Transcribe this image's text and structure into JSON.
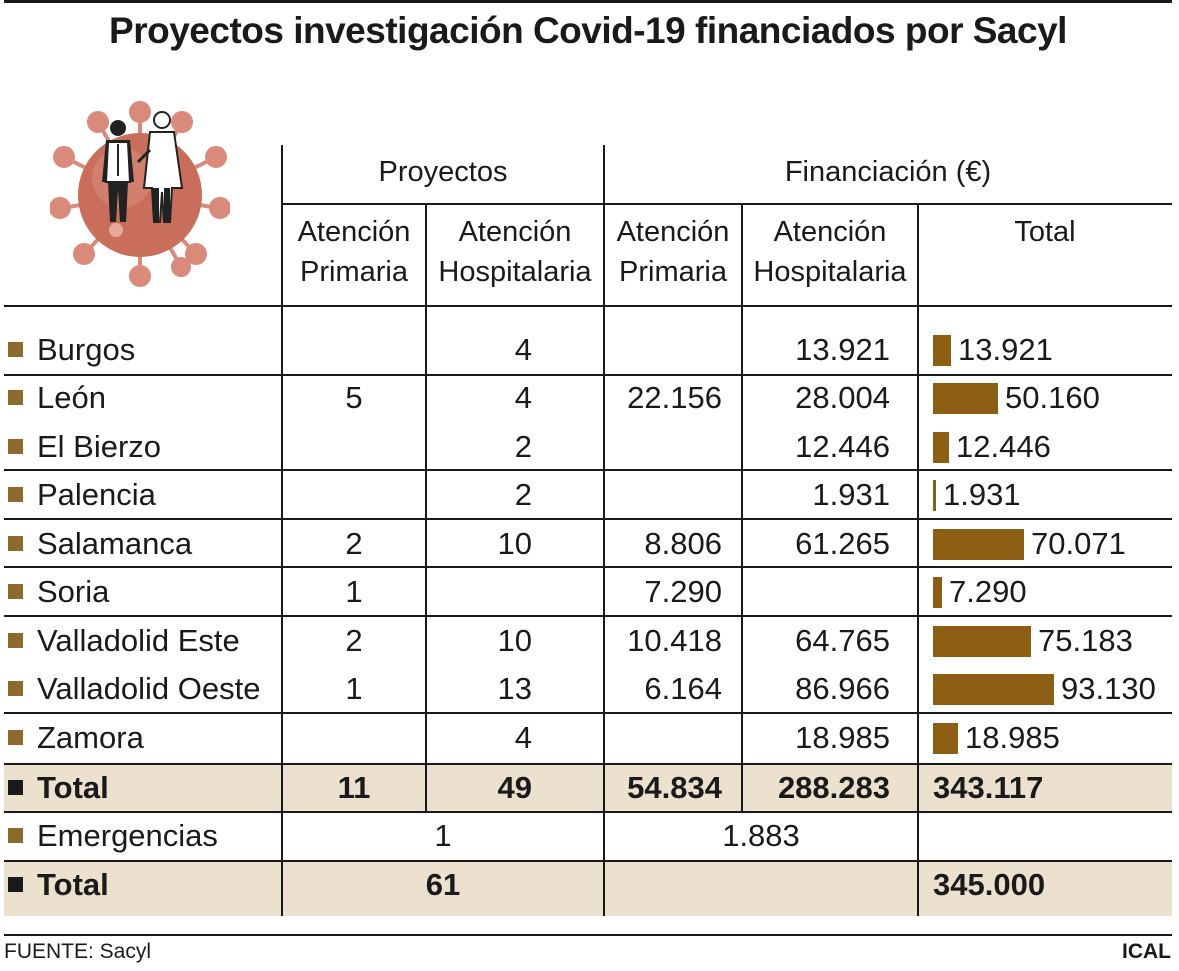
{
  "title": "Proyectos investigación Covid-19 financiados por Sacyl",
  "headers": {
    "proyectos": "Proyectos",
    "financiacion": "Financiación (€)",
    "at_primaria": [
      "Atención",
      "Primaria"
    ],
    "at_hospitalaria": [
      "Atención",
      "Hospitalaria"
    ],
    "total": "Total"
  },
  "rows": [
    {
      "name": "Burgos",
      "pp": "",
      "ph": "4",
      "fp": "",
      "fh": "13.921",
      "total": "13.921"
    },
    {
      "name": "León",
      "pp": "5",
      "ph": "4",
      "fp": "22.156",
      "fh": "28.004",
      "total": "50.160"
    },
    {
      "name": "El Bierzo",
      "pp": "",
      "ph": "2",
      "fp": "",
      "fh": "12.446",
      "total": "12.446"
    },
    {
      "name": "Palencia",
      "pp": "",
      "ph": "2",
      "fp": "",
      "fh": "1.931",
      "total": "1.931"
    },
    {
      "name": "Salamanca",
      "pp": "2",
      "ph": "10",
      "fp": "8.806",
      "fh": "61.265",
      "total": "70.071"
    },
    {
      "name": "Soria",
      "pp": "1",
      "ph": "",
      "fp": "7.290",
      "fh": "",
      "total": "7.290"
    },
    {
      "name": "Valladolid Este",
      "pp": "2",
      "ph": "10",
      "fp": "10.418",
      "fh": "64.765",
      "total": "75.183"
    },
    {
      "name": "Valladolid Oeste",
      "pp": "1",
      "ph": "13",
      "fp": "6.164",
      "fh": "86.966",
      "total": "93.130"
    },
    {
      "name": "Zamora",
      "pp": "",
      "ph": "4",
      "fp": "",
      "fh": "18.985",
      "total": "18.985"
    }
  ],
  "total_row": {
    "name": "Total",
    "pp": "11",
    "ph": "49",
    "fp": "54.834",
    "fh": "288.283",
    "total": "343.117"
  },
  "emergencias_row": {
    "name": "Emergencias",
    "proyectos": "1",
    "financiacion": "1.883"
  },
  "grand_total_row": {
    "name": "Total",
    "proyectos": "61",
    "total": "345.000"
  },
  "footer": {
    "source": "FUENTE: Sacyl",
    "agency": "ICAL"
  },
  "colors": {
    "bar": "#8b5e13",
    "bullet": "#8b6a2c",
    "highlight": "#ece0cf",
    "virus": "#d98a7a"
  },
  "chart_data": {
    "type": "bar",
    "categories": [
      "Burgos",
      "León",
      "El Bierzo",
      "Palencia",
      "Salamanca",
      "Soria",
      "Valladolid Este",
      "Valladolid Oeste",
      "Zamora"
    ],
    "values": [
      13921,
      50160,
      12446,
      1931,
      70071,
      7290,
      75183,
      93130,
      18985
    ],
    "orientation": "horizontal",
    "title": "",
    "xlabel": "",
    "ylabel": ""
  }
}
